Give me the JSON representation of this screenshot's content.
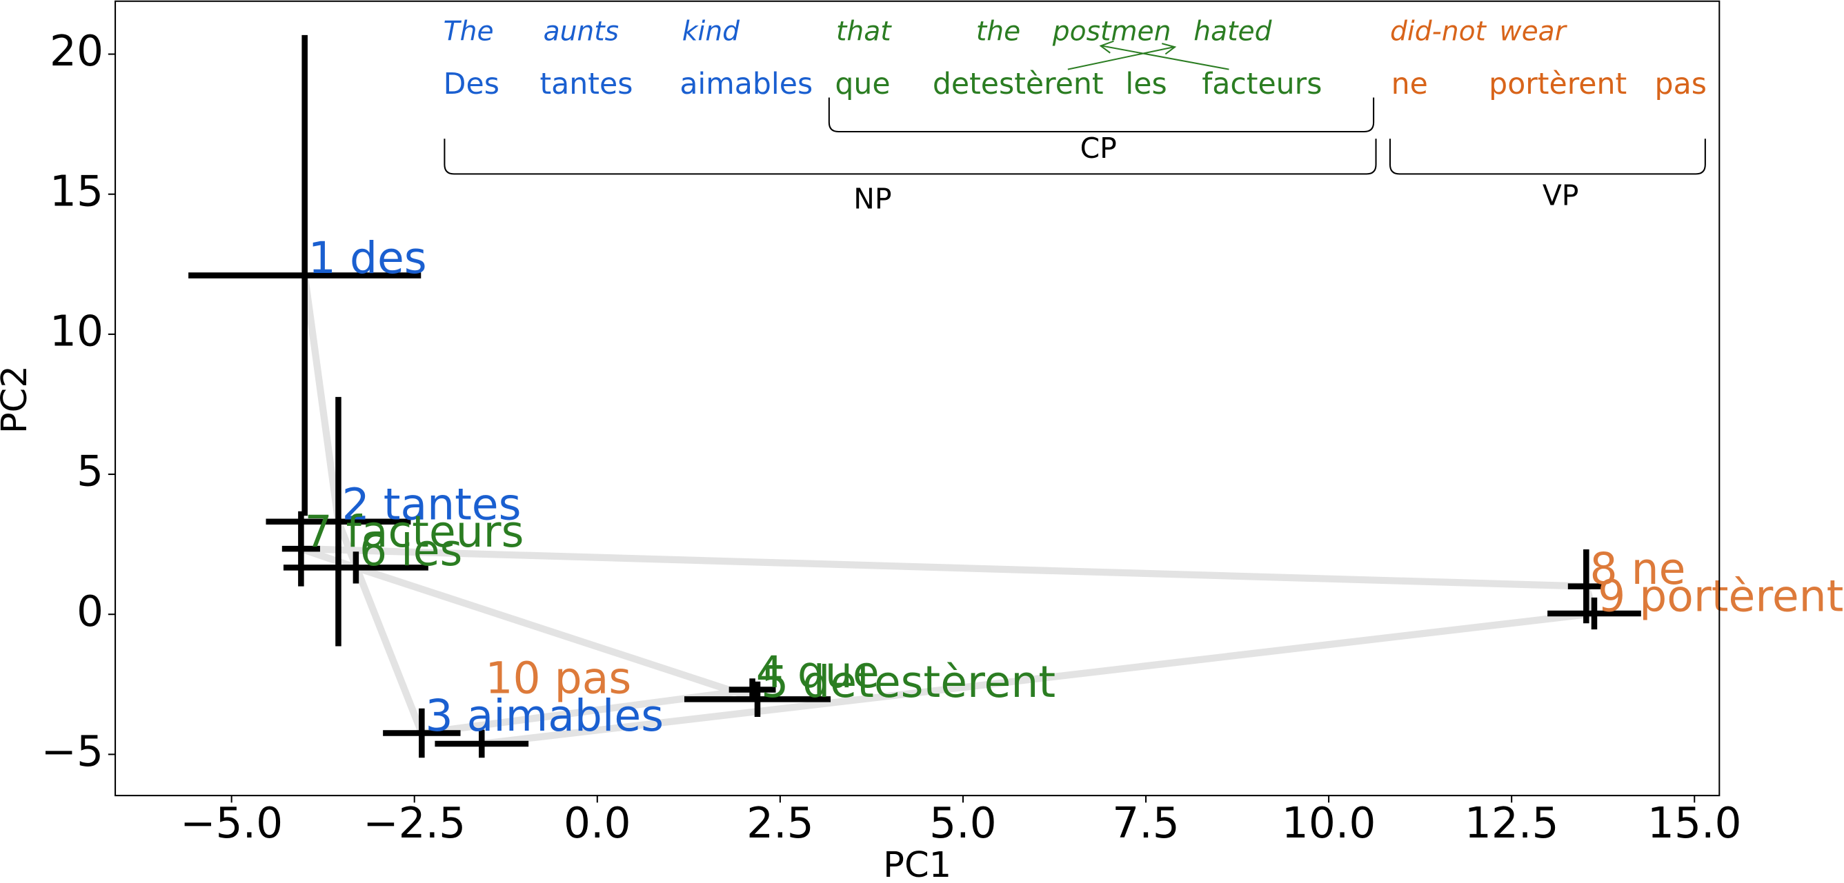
{
  "chart_data": {
    "type": "scatter",
    "xlabel": "PC1",
    "ylabel": "PC2",
    "x": [
      -4.0,
      -3.54,
      -2.4,
      2.12,
      2.19,
      -3.3,
      -4.05,
      13.52,
      13.63,
      -1.58
    ],
    "y": [
      12.1,
      3.31,
      -4.24,
      -2.69,
      -3.03,
      1.67,
      2.34,
      1.0,
      0.03,
      -4.62
    ],
    "xerr": [
      1.59,
      0.99,
      0.53,
      0.32,
      1.0,
      0.99,
      0.26,
      0.25,
      0.64,
      0.64
    ],
    "yerr": [
      8.58,
      4.45,
      0.88,
      0.4,
      0.63,
      0.57,
      1.34,
      1.32,
      0.57,
      0.5
    ],
    "point_labels": [
      "1 des",
      "2 tantes",
      "3 aimables",
      "4 que",
      "5 detestèrent",
      "6 les",
      "7 facteurs",
      "8 ne",
      "9 portèrent",
      "10 pas"
    ],
    "point_colors": [
      "#1a5fd0",
      "#1a5fd0",
      "#1a5fd0",
      "#2b7d22",
      "#2b7d22",
      "#2b7d22",
      "#2b7d22",
      "#dd7a3a",
      "#dd7a3a",
      "#dd7a3a"
    ],
    "errorbar_color": "#000000",
    "line_color": "#e3e3e3",
    "xlim": [
      -6.59,
      15.34
    ],
    "ylim": [
      -6.47,
      21.89
    ],
    "xticks": [
      {
        "value": -5,
        "label": "−5.0"
      },
      {
        "value": -2.5,
        "label": "−2.5"
      },
      {
        "value": 0,
        "label": "0.0"
      },
      2.5,
      {
        "value": 5,
        "label": "5.0"
      },
      7.5,
      {
        "value": 10,
        "label": "10.0"
      },
      12.5,
      {
        "value": 15,
        "label": "15.0"
      }
    ],
    "yticks": [
      {
        "value": -5,
        "label": "−5"
      },
      0,
      5,
      10,
      15,
      20
    ]
  },
  "annotation": {
    "english": [
      "The",
      "aunts",
      "kind",
      "that",
      "the",
      "postmen",
      "hated",
      "did-not",
      "wear"
    ],
    "french": [
      "Des",
      "tantes",
      "aimables",
      "que",
      "detestèrent",
      "les",
      "facteurs",
      "ne",
      "portèrent",
      "pas"
    ],
    "brackets": [
      "CP",
      "NP",
      "VP"
    ]
  }
}
